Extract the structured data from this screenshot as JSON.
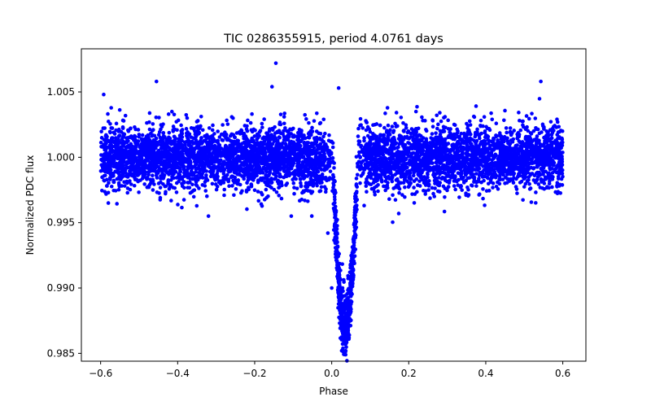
{
  "chart_data": {
    "type": "scatter",
    "title": "TIC 0286355915, period 4.0761 days",
    "xlabel": "Phase",
    "ylabel": "Normalized PDC flux",
    "xlim": [
      -0.65,
      0.66
    ],
    "ylim": [
      0.9844,
      1.0083
    ],
    "grid": false,
    "legend": "none",
    "marker_color": "#0000ff",
    "x_ticks": [
      {
        "value": -0.6,
        "label": "−0.6"
      },
      {
        "value": -0.4,
        "label": "−0.4"
      },
      {
        "value": -0.2,
        "label": "−0.2"
      },
      {
        "value": 0.0,
        "label": "0.0"
      },
      {
        "value": 0.2,
        "label": "0.2"
      },
      {
        "value": 0.4,
        "label": "0.4"
      },
      {
        "value": 0.6,
        "label": "0.6"
      }
    ],
    "y_ticks": [
      {
        "value": 0.985,
        "label": "0.985"
      },
      {
        "value": 0.99,
        "label": "0.990"
      },
      {
        "value": 0.995,
        "label": "0.995"
      },
      {
        "value": 1.0,
        "label": "1.000"
      },
      {
        "value": 1.005,
        "label": "1.005"
      }
    ],
    "series": [
      {
        "name": "PDC flux",
        "baseline": {
          "flux_mean": 1.0,
          "flux_scatter_sigma": 0.0012,
          "phase_range": [
            -0.6,
            0.6
          ],
          "approx_points": 6000
        },
        "transit": {
          "center_phase": 0.035,
          "depth_min_flux": 0.9857,
          "ingress_phase": 0.0,
          "egress_phase": 0.065
        },
        "highlighted_points": [
          {
            "x": -0.145,
            "y": 1.0072
          },
          {
            "x": -0.455,
            "y": 1.0058
          },
          {
            "x": 0.543,
            "y": 1.0058
          },
          {
            "x": 0.018,
            "y": 1.0053
          },
          {
            "x": -0.155,
            "y": 1.0054
          },
          {
            "x": -0.592,
            "y": 1.0048
          },
          {
            "x": -0.58,
            "y": 0.9965
          },
          {
            "x": -0.32,
            "y": 0.9955
          },
          {
            "x": -0.105,
            "y": 0.9955
          },
          {
            "x": 0.174,
            "y": 0.9957
          },
          {
            "x": 0.035,
            "y": 0.9857
          },
          {
            "x": 0.045,
            "y": 0.9862
          },
          {
            "x": -0.01,
            "y": 0.9942
          },
          {
            "x": 0.0,
            "y": 0.99
          }
        ]
      }
    ]
  }
}
